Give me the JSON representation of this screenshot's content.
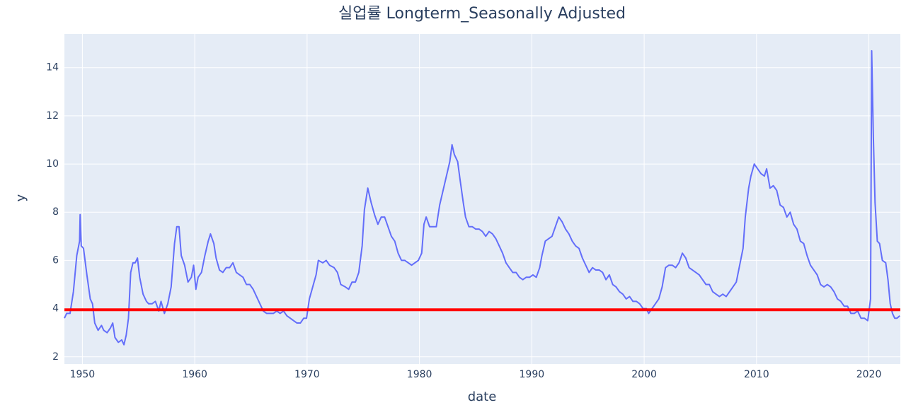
{
  "chart_data": {
    "type": "line",
    "title": "실업률 Longterm_Seasonally Adjusted",
    "x_label": "date",
    "y_label": "y",
    "x": [
      1948.4,
      1948.6,
      1948.9,
      1949.2,
      1949.5,
      1949.75,
      1949.8,
      1949.9,
      1950.1,
      1950.4,
      1950.7,
      1950.9,
      1951.1,
      1951.4,
      1951.7,
      1951.9,
      1952.2,
      1952.5,
      1952.7,
      1952.9,
      1953.2,
      1953.5,
      1953.7,
      1953.9,
      1954.1,
      1954.3,
      1954.5,
      1954.7,
      1954.9,
      1955.1,
      1955.4,
      1955.7,
      1955.9,
      1956.2,
      1956.5,
      1956.8,
      1957.0,
      1957.3,
      1957.6,
      1957.9,
      1958.2,
      1958.4,
      1958.6,
      1958.8,
      1959.1,
      1959.4,
      1959.7,
      1959.9,
      1960.1,
      1960.3,
      1960.6,
      1960.9,
      1961.2,
      1961.4,
      1961.7,
      1961.9,
      1962.2,
      1962.5,
      1962.8,
      1963.1,
      1963.4,
      1963.7,
      1964.0,
      1964.3,
      1964.6,
      1964.9,
      1965.2,
      1965.5,
      1965.8,
      1966.1,
      1966.4,
      1966.7,
      1967.0,
      1967.3,
      1967.6,
      1967.9,
      1968.2,
      1968.5,
      1968.8,
      1969.1,
      1969.4,
      1969.7,
      1969.95,
      1970.2,
      1970.5,
      1970.8,
      1971.0,
      1971.4,
      1971.7,
      1972.0,
      1972.4,
      1972.7,
      1973.0,
      1973.4,
      1973.7,
      1974.0,
      1974.3,
      1974.6,
      1974.9,
      1975.1,
      1975.4,
      1975.7,
      1976.0,
      1976.3,
      1976.6,
      1976.9,
      1977.2,
      1977.5,
      1977.8,
      1978.1,
      1978.4,
      1978.7,
      1979.0,
      1979.3,
      1979.6,
      1979.9,
      1980.2,
      1980.4,
      1980.6,
      1980.9,
      1981.2,
      1981.5,
      1981.8,
      1982.1,
      1982.4,
      1982.7,
      1982.9,
      1983.1,
      1983.4,
      1983.6,
      1983.9,
      1984.1,
      1984.4,
      1984.7,
      1985.0,
      1985.3,
      1985.6,
      1985.9,
      1986.2,
      1986.5,
      1986.8,
      1987.1,
      1987.4,
      1987.7,
      1988.0,
      1988.3,
      1988.6,
      1988.9,
      1989.2,
      1989.5,
      1989.8,
      1990.1,
      1990.4,
      1990.7,
      1990.9,
      1991.2,
      1991.5,
      1991.8,
      1992.1,
      1992.4,
      1992.7,
      1993.0,
      1993.3,
      1993.6,
      1993.9,
      1994.2,
      1994.5,
      1994.8,
      1995.1,
      1995.4,
      1995.7,
      1996.0,
      1996.3,
      1996.6,
      1996.9,
      1997.2,
      1997.5,
      1997.8,
      1998.1,
      1998.4,
      1998.7,
      1999.0,
      1999.3,
      1999.6,
      1999.9,
      2000.2,
      2000.4,
      2000.7,
      2001.0,
      2001.3,
      2001.6,
      2001.9,
      2002.2,
      2002.5,
      2002.8,
      2003.1,
      2003.4,
      2003.7,
      2004.0,
      2004.3,
      2004.6,
      2004.9,
      2005.2,
      2005.5,
      2005.8,
      2006.1,
      2006.4,
      2006.7,
      2007.0,
      2007.3,
      2007.6,
      2007.9,
      2008.2,
      2008.5,
      2008.8,
      2009.0,
      2009.3,
      2009.5,
      2009.8,
      2010.1,
      2010.4,
      2010.7,
      2010.9,
      2011.2,
      2011.5,
      2011.8,
      2012.1,
      2012.4,
      2012.7,
      2013.0,
      2013.3,
      2013.6,
      2013.9,
      2014.2,
      2014.5,
      2014.8,
      2015.1,
      2015.4,
      2015.7,
      2016.0,
      2016.3,
      2016.6,
      2016.9,
      2017.2,
      2017.5,
      2017.8,
      2018.1,
      2018.4,
      2018.7,
      2019.0,
      2019.3,
      2019.6,
      2019.9,
      2020.15,
      2020.25,
      2020.4,
      2020.55,
      2020.75,
      2020.95,
      2021.2,
      2021.5,
      2021.7,
      2021.9,
      2022.1,
      2022.3,
      2022.5,
      2022.75
    ],
    "values": [
      3.6,
      3.8,
      3.8,
      4.7,
      6.2,
      6.8,
      7.9,
      6.6,
      6.5,
      5.4,
      4.4,
      4.2,
      3.4,
      3.1,
      3.3,
      3.1,
      3.0,
      3.2,
      3.4,
      2.8,
      2.6,
      2.7,
      2.5,
      2.9,
      3.6,
      5.5,
      5.9,
      5.9,
      6.1,
      5.3,
      4.6,
      4.3,
      4.2,
      4.2,
      4.3,
      3.9,
      4.3,
      3.8,
      4.2,
      4.9,
      6.7,
      7.4,
      7.4,
      6.2,
      5.8,
      5.1,
      5.3,
      5.8,
      4.8,
      5.3,
      5.5,
      6.2,
      6.8,
      7.1,
      6.7,
      6.1,
      5.6,
      5.5,
      5.7,
      5.7,
      5.9,
      5.5,
      5.4,
      5.3,
      5.0,
      5.0,
      4.8,
      4.5,
      4.2,
      3.9,
      3.8,
      3.8,
      3.8,
      3.9,
      3.8,
      3.9,
      3.7,
      3.6,
      3.5,
      3.4,
      3.4,
      3.6,
      3.6,
      4.4,
      4.9,
      5.4,
      6.0,
      5.9,
      6.0,
      5.8,
      5.7,
      5.5,
      5.0,
      4.9,
      4.8,
      5.1,
      5.1,
      5.5,
      6.6,
      8.1,
      9.0,
      8.4,
      7.9,
      7.5,
      7.8,
      7.8,
      7.4,
      7.0,
      6.8,
      6.3,
      6.0,
      6.0,
      5.9,
      5.8,
      5.9,
      6.0,
      6.3,
      7.5,
      7.8,
      7.4,
      7.4,
      7.4,
      8.3,
      8.9,
      9.5,
      10.1,
      10.8,
      10.4,
      10.1,
      9.4,
      8.4,
      7.8,
      7.4,
      7.4,
      7.3,
      7.3,
      7.2,
      7.0,
      7.2,
      7.1,
      6.9,
      6.6,
      6.3,
      5.9,
      5.7,
      5.5,
      5.5,
      5.3,
      5.2,
      5.3,
      5.3,
      5.4,
      5.3,
      5.7,
      6.2,
      6.8,
      6.9,
      7.0,
      7.4,
      7.8,
      7.6,
      7.3,
      7.1,
      6.8,
      6.6,
      6.5,
      6.1,
      5.8,
      5.5,
      5.7,
      5.6,
      5.6,
      5.5,
      5.2,
      5.4,
      5.0,
      4.9,
      4.7,
      4.6,
      4.4,
      4.5,
      4.3,
      4.3,
      4.2,
      4.0,
      4.0,
      3.8,
      4.0,
      4.2,
      4.4,
      4.9,
      5.7,
      5.8,
      5.8,
      5.7,
      5.9,
      6.3,
      6.1,
      5.7,
      5.6,
      5.5,
      5.4,
      5.2,
      5.0,
      5.0,
      4.7,
      4.6,
      4.5,
      4.6,
      4.5,
      4.7,
      4.9,
      5.1,
      5.8,
      6.5,
      7.8,
      9.0,
      9.5,
      10.0,
      9.8,
      9.6,
      9.5,
      9.8,
      9.0,
      9.1,
      8.9,
      8.3,
      8.2,
      7.8,
      8.0,
      7.5,
      7.3,
      6.8,
      6.7,
      6.2,
      5.8,
      5.6,
      5.4,
      5.0,
      4.9,
      5.0,
      4.9,
      4.7,
      4.4,
      4.3,
      4.1,
      4.1,
      3.8,
      3.8,
      3.9,
      3.6,
      3.6,
      3.5,
      4.4,
      14.7,
      11.1,
      8.4,
      6.8,
      6.7,
      6.0,
      5.9,
      5.2,
      4.2,
      3.8,
      3.6,
      3.6,
      3.7
    ],
    "color": "#636efa",
    "reference_line": {
      "value": 3.95,
      "color": "#ff0000"
    },
    "xlim": [
      1948.4,
      2022.8
    ],
    "xticks": [
      1950,
      1960,
      1970,
      1980,
      1990,
      2000,
      2010,
      2020
    ],
    "ylim": [
      1.7,
      15.4
    ],
    "yticks": [
      2,
      4,
      6,
      8,
      10,
      12,
      14
    ],
    "grid": true,
    "plot_background": "#e5ecf6"
  }
}
